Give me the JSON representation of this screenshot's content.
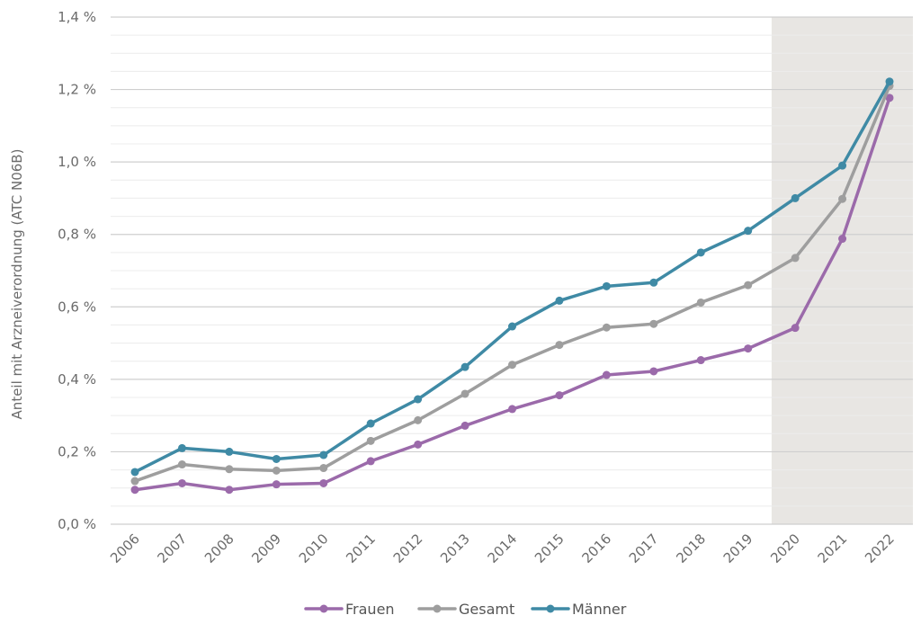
{
  "chart_data": {
    "type": "line",
    "ylabel": "Anteil mit Arzneiverordnung (ATC N06B)",
    "xlabel": "",
    "categories": [
      "2006",
      "2007",
      "2008",
      "2009",
      "2010",
      "2011",
      "2012",
      "2013",
      "2014",
      "2015",
      "2016",
      "2017",
      "2018",
      "2019",
      "2020",
      "2021",
      "2022"
    ],
    "ylim": [
      0,
      1.4
    ],
    "yticks": [
      0,
      0.2,
      0.4,
      0.6,
      0.8,
      1.0,
      1.2,
      1.4
    ],
    "ytick_labels": [
      "0,0 %",
      "0,2 %",
      "0,4 %",
      "0,6 %",
      "0,8 %",
      "1,0 %",
      "1,2 %",
      "1,4 %"
    ],
    "shaded_range": [
      "2020",
      "2022"
    ],
    "shade_color": "#e8e6e3",
    "grid": true,
    "legend_position": "bottom",
    "series": [
      {
        "name": "Frauen",
        "color": "#9b6aaa",
        "values": [
          0.095,
          0.113,
          0.095,
          0.11,
          0.113,
          0.174,
          0.22,
          0.272,
          0.318,
          0.356,
          0.412,
          0.422,
          0.453,
          0.485,
          0.542,
          0.788,
          1.177
        ]
      },
      {
        "name": "Gesamt",
        "color": "#9e9e9e",
        "values": [
          0.119,
          0.165,
          0.152,
          0.148,
          0.155,
          0.23,
          0.287,
          0.36,
          0.44,
          0.495,
          0.543,
          0.553,
          0.612,
          0.66,
          0.735,
          0.898,
          1.21
        ]
      },
      {
        "name": "Männer",
        "color": "#3f8aa5",
        "values": [
          0.144,
          0.21,
          0.2,
          0.18,
          0.191,
          0.278,
          0.345,
          0.434,
          0.546,
          0.617,
          0.657,
          0.667,
          0.75,
          0.81,
          0.9,
          0.99,
          1.222
        ]
      }
    ]
  }
}
